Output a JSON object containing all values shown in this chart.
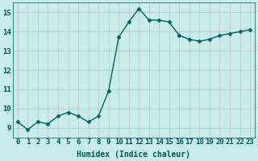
{
  "x": [
    0,
    1,
    2,
    3,
    4,
    5,
    6,
    7,
    8,
    9,
    10,
    11,
    12,
    13,
    14,
    15,
    16,
    17,
    18,
    19,
    20,
    21,
    22,
    23
  ],
  "y": [
    9.3,
    8.9,
    9.3,
    9.2,
    9.6,
    9.8,
    9.6,
    9.3,
    9.6,
    10.9,
    13.7,
    14.5,
    15.2,
    14.6,
    14.6,
    14.5,
    13.8,
    13.6,
    13.5,
    13.6,
    13.8,
    13.9,
    14.0,
    14.1
  ],
  "line_color": "#006060",
  "marker": "D",
  "marker_size": 2.5,
  "bg_color": "#c8ecec",
  "grid_color_v": "#c8b8b8",
  "grid_color_h": "#c8b8b8",
  "xlabel": "Humidex (Indice chaleur)",
  "xlim": [
    -0.5,
    23.5
  ],
  "ylim": [
    8.5,
    15.5
  ],
  "yticks": [
    9,
    10,
    11,
    12,
    13,
    14,
    15
  ],
  "xticks": [
    0,
    1,
    2,
    3,
    4,
    5,
    6,
    7,
    8,
    9,
    10,
    11,
    12,
    13,
    14,
    15,
    16,
    17,
    18,
    19,
    20,
    21,
    22,
    23
  ],
  "xtick_labels": [
    "0",
    "1",
    "2",
    "3",
    "4",
    "5",
    "6",
    "7",
    "8",
    "9",
    "10",
    "11",
    "12",
    "13",
    "14",
    "15",
    "16",
    "17",
    "18",
    "19",
    "20",
    "21",
    "22",
    "23"
  ],
  "font_color": "#005555",
  "label_fontsize": 7,
  "tick_fontsize": 6.5
}
